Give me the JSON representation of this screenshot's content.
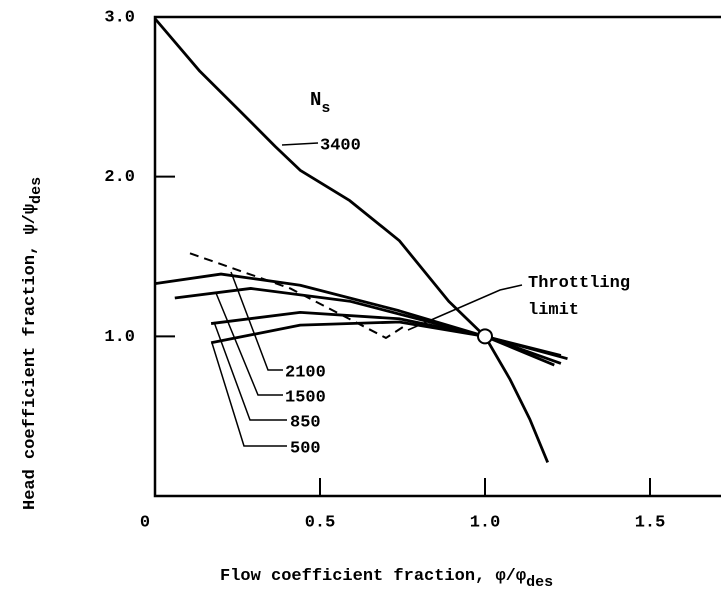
{
  "chart_data": {
    "type": "line",
    "x_label": "Flow coefficient fraction, φ/φ",
    "x_label_sub": "des",
    "y_label": "Head coefficient fraction,  ψ/ψ",
    "y_label_sub": "des",
    "xlim": [
      0,
      1.72
    ],
    "ylim": [
      0,
      3.0
    ],
    "xticks": [
      0,
      0.5,
      {
        "value": 1,
        "label": "1.0"
      },
      1.5
    ],
    "yticks": [
      {
        "value": 1,
        "label": "1.0"
      },
      {
        "value": 2,
        "label": "2.0"
      },
      {
        "value": 3,
        "label": "3.0"
      }
    ],
    "ns_label": {
      "main": "N",
      "sub": "s"
    },
    "color": "#000000",
    "series": [
      {
        "name": "3400",
        "x": [
          0,
          0.136,
          0.258,
          0.364,
          0.44,
          0.59,
          0.74,
          0.89,
          1.0,
          1.076,
          1.136,
          1.19
        ],
        "values": [
          2.99,
          2.66,
          2.41,
          2.19,
          2.04,
          1.85,
          1.6,
          1.22,
          1.0,
          0.73,
          0.48,
          0.21
        ]
      },
      {
        "name": "2100",
        "x": [
          0,
          0.2,
          0.44,
          0.74,
          1.0,
          1.25
        ],
        "values": [
          1.33,
          1.39,
          1.32,
          1.16,
          1.0,
          0.86
        ]
      },
      {
        "name": "1500",
        "x": [
          0.06,
          0.29,
          0.59,
          1.0,
          1.23
        ],
        "values": [
          1.24,
          1.3,
          1.22,
          1.0,
          0.83
        ]
      },
      {
        "name": "850",
        "x": [
          0.17,
          0.44,
          0.74,
          1.0,
          1.21
        ],
        "values": [
          1.08,
          1.15,
          1.11,
          1.0,
          0.82
        ]
      },
      {
        "name": "500",
        "x": [
          0.17,
          0.44,
          0.74,
          1.0,
          1.23
        ],
        "values": [
          0.96,
          1.07,
          1.09,
          1.0,
          0.88
        ]
      },
      {
        "name": "Throttling limit",
        "dash": true,
        "x": [
          0.106,
          0.41,
          0.7,
          0.76
        ],
        "values": [
          1.52,
          1.3,
          0.99,
          1.07
        ]
      }
    ],
    "design_point": {
      "x": 1.0,
      "y": 1.0
    }
  }
}
